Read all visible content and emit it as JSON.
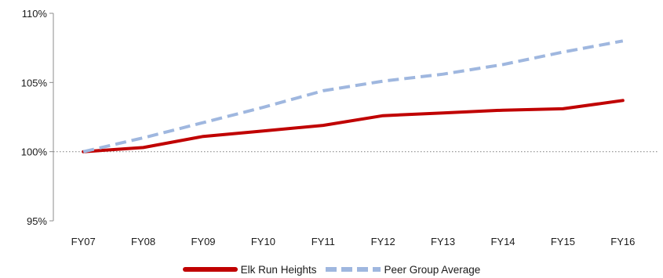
{
  "chart_data": {
    "type": "line",
    "title": "",
    "xlabel": "",
    "ylabel": "",
    "categories": [
      "FY07",
      "FY08",
      "FY09",
      "FY10",
      "FY11",
      "FY12",
      "FY13",
      "FY14",
      "FY15",
      "FY16"
    ],
    "y_ticks": [
      "95%",
      "100%",
      "105%",
      "110%"
    ],
    "ylim": [
      95,
      110
    ],
    "reference_line": 100,
    "grid": false,
    "legend_placement": "bottom",
    "series": [
      {
        "name": "Elk Run Heights",
        "color": "#c00000",
        "style": "solid",
        "values": [
          100.0,
          100.3,
          101.1,
          101.5,
          101.9,
          102.6,
          102.8,
          103.0,
          103.1,
          103.7
        ]
      },
      {
        "name": "Peer Group Average",
        "color": "#9fb7df",
        "style": "dashed",
        "values": [
          100.0,
          101.0,
          102.1,
          103.2,
          104.4,
          105.1,
          105.6,
          106.3,
          107.2,
          108.0
        ]
      }
    ]
  }
}
